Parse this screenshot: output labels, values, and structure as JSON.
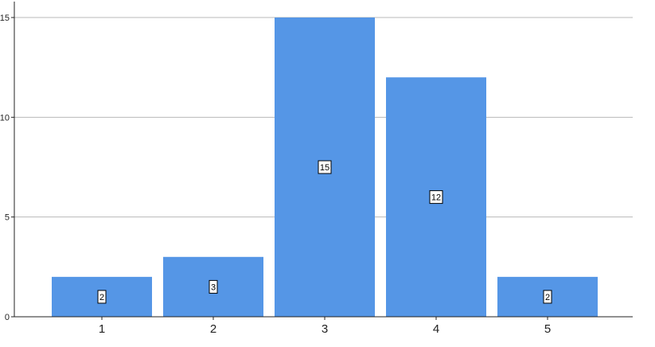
{
  "chart_data": {
    "type": "bar",
    "categories": [
      "1",
      "2",
      "3",
      "4",
      "5"
    ],
    "values": [
      2,
      3,
      15,
      12,
      2
    ],
    "data_labels": [
      "2",
      "3",
      "15",
      "12",
      "2"
    ],
    "y_ticks": [
      0,
      5,
      10,
      15
    ],
    "ylim": [
      0,
      15
    ],
    "grid": true,
    "bar_color": "#5596e6",
    "grid_color": "#b8b8b8",
    "axis_color": "#222222"
  }
}
